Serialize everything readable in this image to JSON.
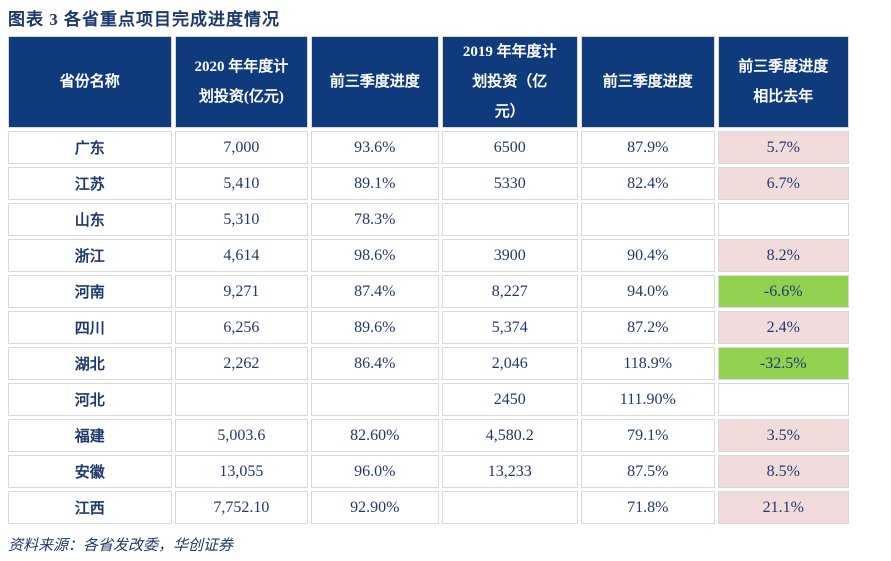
{
  "title": "图表 3  各省重点项目完成进度情况",
  "source": "资料来源：各省发改委，华创证券",
  "colors": {
    "header_bg": "#0f3b7c",
    "header_text": "#ffffff",
    "body_text": "#1e3a6e",
    "highlight_pink": "#f2dcdb",
    "highlight_green": "#92d050",
    "grid_border": "#d9d9d9"
  },
  "table": {
    "headers": [
      "省份名称",
      "2020 年年度计\n划投资(亿元)",
      "前三季度进度",
      "2019 年年度计\n划投资（亿\n元）",
      "前三季度进度",
      "前三季度进度\n相比去年"
    ],
    "rows": [
      {
        "province": "广东",
        "plan2020": "7,000",
        "progress2020": "93.6%",
        "plan2019": "6500",
        "progress2019": "87.9%",
        "diff": "5.7%",
        "diff_bg": "pink"
      },
      {
        "province": "江苏",
        "plan2020": "5,410",
        "progress2020": "89.1%",
        "plan2019": "5330",
        "progress2019": "82.4%",
        "diff": "6.7%",
        "diff_bg": "pink"
      },
      {
        "province": "山东",
        "plan2020": "5,310",
        "progress2020": "78.3%",
        "plan2019": "",
        "progress2019": "",
        "diff": "",
        "diff_bg": "none"
      },
      {
        "province": "浙江",
        "plan2020": "4,614",
        "progress2020": "98.6%",
        "plan2019": "3900",
        "progress2019": "90.4%",
        "diff": "8.2%",
        "diff_bg": "pink"
      },
      {
        "province": "河南",
        "plan2020": "9,271",
        "progress2020": "87.4%",
        "plan2019": "8,227",
        "progress2019": "94.0%",
        "diff": "-6.6%",
        "diff_bg": "green"
      },
      {
        "province": "四川",
        "plan2020": "6,256",
        "progress2020": "89.6%",
        "plan2019": "5,374",
        "progress2019": "87.2%",
        "diff": "2.4%",
        "diff_bg": "pink"
      },
      {
        "province": "湖北",
        "plan2020": "2,262",
        "progress2020": "86.4%",
        "plan2019": "2,046",
        "progress2019": "118.9%",
        "diff": "-32.5%",
        "diff_bg": "green"
      },
      {
        "province": "河北",
        "plan2020": "",
        "progress2020": "",
        "plan2019": "2450",
        "progress2019": "111.90%",
        "diff": "",
        "diff_bg": "none"
      },
      {
        "province": "福建",
        "plan2020": "5,003.6",
        "progress2020": "82.60%",
        "plan2019": "4,580.2",
        "progress2019": "79.1%",
        "diff": "3.5%",
        "diff_bg": "pink"
      },
      {
        "province": "安徽",
        "plan2020": "13,055",
        "progress2020": "96.0%",
        "plan2019": "13,233",
        "progress2019": "87.5%",
        "diff": "8.5%",
        "diff_bg": "pink"
      },
      {
        "province": "江西",
        "plan2020": "7,752.10",
        "progress2020": "92.90%",
        "plan2019": "",
        "progress2019": "71.8%",
        "diff": "21.1%",
        "diff_bg": "pink"
      }
    ]
  }
}
